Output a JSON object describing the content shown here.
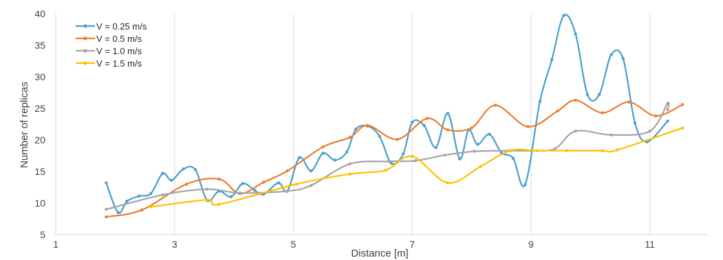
{
  "chart_data": {
    "type": "line",
    "title": "",
    "xlabel": "Distance [m]",
    "ylabel": "Number of replicas",
    "xlim": [
      1,
      12
    ],
    "ylim": [
      5,
      40
    ],
    "xticks": [
      1,
      3,
      5,
      7,
      9,
      11
    ],
    "yticks": [
      5,
      10,
      15,
      20,
      25,
      30,
      35,
      40
    ],
    "grid": "vertical",
    "legend_position": "top-left",
    "smooth": true,
    "series": [
      {
        "name": "V = 0.25 m/s",
        "color": "#4a9fcd",
        "points": [
          [
            1.85,
            13.2
          ],
          [
            2.05,
            8.5
          ],
          [
            2.2,
            10.3
          ],
          [
            2.4,
            11.1
          ],
          [
            2.6,
            11.5
          ],
          [
            2.8,
            14.7
          ],
          [
            2.95,
            13.6
          ],
          [
            3.15,
            15.4
          ],
          [
            3.35,
            15.3
          ],
          [
            3.55,
            10.4
          ],
          [
            3.75,
            11.9
          ],
          [
            3.95,
            11.0
          ],
          [
            4.15,
            13.1
          ],
          [
            4.35,
            12.0
          ],
          [
            4.5,
            11.4
          ],
          [
            4.75,
            13.2
          ],
          [
            4.9,
            11.9
          ],
          [
            5.1,
            17.2
          ],
          [
            5.3,
            15.1
          ],
          [
            5.5,
            17.9
          ],
          [
            5.7,
            16.8
          ],
          [
            5.9,
            18.1
          ],
          [
            6.05,
            21.7
          ],
          [
            6.25,
            22.2
          ],
          [
            6.45,
            20.6
          ],
          [
            6.65,
            16.3
          ],
          [
            6.85,
            17.8
          ],
          [
            7.0,
            22.8
          ],
          [
            7.2,
            22.3
          ],
          [
            7.4,
            18.8
          ],
          [
            7.6,
            24.2
          ],
          [
            7.8,
            17.0
          ],
          [
            7.95,
            21.6
          ],
          [
            8.1,
            19.3
          ],
          [
            8.3,
            20.9
          ],
          [
            8.5,
            18.0
          ],
          [
            8.7,
            17.1
          ],
          [
            8.9,
            12.9
          ],
          [
            9.15,
            26.1
          ],
          [
            9.35,
            32.7
          ],
          [
            9.55,
            39.7
          ],
          [
            9.75,
            36.8
          ],
          [
            9.95,
            27.2
          ],
          [
            10.15,
            27.2
          ],
          [
            10.35,
            33.5
          ],
          [
            10.55,
            32.9
          ],
          [
            10.75,
            22.7
          ],
          [
            10.95,
            19.7
          ],
          [
            11.3,
            23.0
          ]
        ]
      },
      {
        "name": "V = 0.5 m/s",
        "color": "#ed7d31",
        "points": [
          [
            1.85,
            7.8
          ],
          [
            2.45,
            8.9
          ],
          [
            3.2,
            13.0
          ],
          [
            3.75,
            13.8
          ],
          [
            4.1,
            11.5
          ],
          [
            4.5,
            13.3
          ],
          [
            4.9,
            15.1
          ],
          [
            5.5,
            18.9
          ],
          [
            5.95,
            20.4
          ],
          [
            6.25,
            22.3
          ],
          [
            6.75,
            20.1
          ],
          [
            7.25,
            23.4
          ],
          [
            7.6,
            21.6
          ],
          [
            8.0,
            21.9
          ],
          [
            8.4,
            25.5
          ],
          [
            8.95,
            22.1
          ],
          [
            9.45,
            24.6
          ],
          [
            9.75,
            26.3
          ],
          [
            10.2,
            24.3
          ],
          [
            10.65,
            26.0
          ],
          [
            11.1,
            23.8
          ],
          [
            11.55,
            25.6
          ]
        ]
      },
      {
        "name": "V = 1.0 m/s",
        "color": "#a5a5a5",
        "points": [
          [
            1.85,
            9.0
          ],
          [
            2.8,
            11.3
          ],
          [
            3.55,
            12.2
          ],
          [
            4.1,
            11.6
          ],
          [
            4.9,
            11.9
          ],
          [
            5.3,
            12.8
          ],
          [
            5.95,
            16.2
          ],
          [
            6.6,
            16.6
          ],
          [
            7.05,
            16.7
          ],
          [
            7.55,
            17.6
          ],
          [
            8.05,
            18.2
          ],
          [
            8.65,
            18.3
          ],
          [
            9.0,
            18.3
          ],
          [
            9.4,
            18.6
          ],
          [
            9.75,
            21.4
          ],
          [
            10.35,
            20.8
          ],
          [
            11.0,
            21.4
          ],
          [
            11.3,
            25.8
          ],
          [
            11.3,
            24.8
          ]
        ]
      },
      {
        "name": "V = 1.5 m/s",
        "color": "#ffc000",
        "points": [
          [
            2.6,
            9.4
          ],
          [
            3.55,
            10.5
          ],
          [
            3.75,
            9.8
          ],
          [
            5.05,
            13.0
          ],
          [
            5.95,
            14.6
          ],
          [
            6.55,
            15.2
          ],
          [
            7.0,
            17.4
          ],
          [
            7.6,
            13.2
          ],
          [
            8.15,
            15.8
          ],
          [
            8.65,
            18.3
          ],
          [
            9.1,
            18.3
          ],
          [
            9.6,
            18.3
          ],
          [
            10.2,
            18.3
          ],
          [
            10.45,
            18.4
          ],
          [
            11.55,
            21.9
          ]
        ]
      }
    ]
  }
}
